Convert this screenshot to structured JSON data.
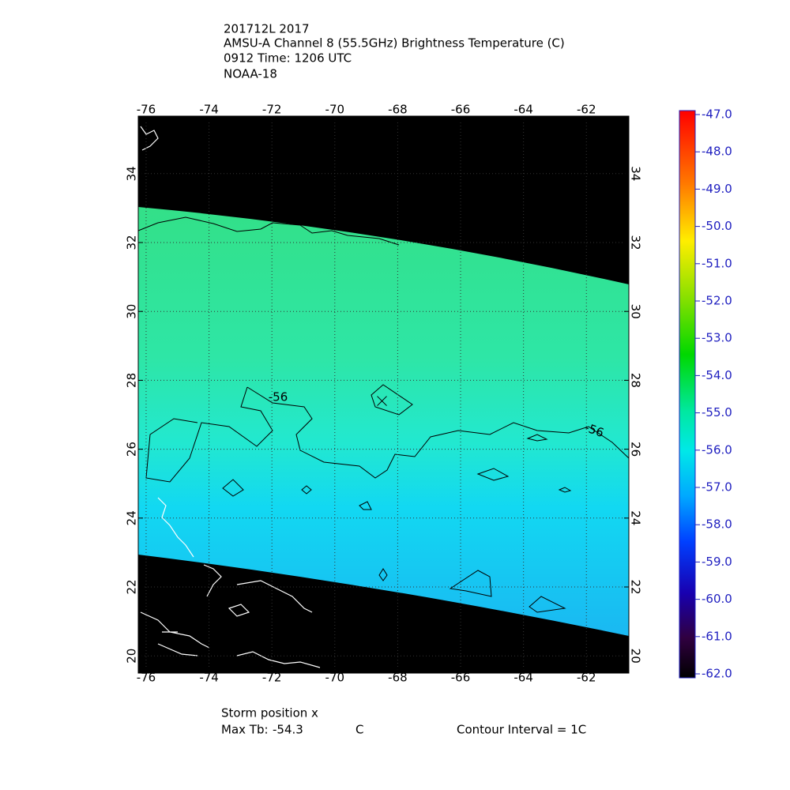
{
  "header": {
    "lines": [
      "201712L 2017",
      "AMSU-A Channel 8 (55.5GHz) Brightness Temperature (C)",
      "0912 Time: 1206 UTC",
      "NOAA-18"
    ]
  },
  "map": {
    "xlim": [
      -76.25,
      -60.65
    ],
    "ylim": [
      19.5,
      35.67
    ],
    "xticks": [
      -76,
      -74,
      -72,
      -70,
      -68,
      -66,
      -64,
      -62
    ],
    "yticks": [
      20,
      22,
      24,
      26,
      28,
      30,
      32,
      34
    ],
    "contour_labels": [
      "-56",
      "-56"
    ],
    "storm": {
      "lon": -68.5,
      "lat": 27.4
    }
  },
  "colorbar": {
    "lim": [
      -62,
      -47
    ],
    "ticks": [
      {
        "value": -47,
        "label": "-47.0"
      },
      {
        "value": -48,
        "label": "-48.0"
      },
      {
        "value": -49,
        "label": "-49.0"
      },
      {
        "value": -50,
        "label": "-50.0"
      },
      {
        "value": -51,
        "label": "-51.0"
      },
      {
        "value": -52,
        "label": "-52.0"
      },
      {
        "value": -53,
        "label": "-53.0"
      },
      {
        "value": -54,
        "label": "-54.0"
      },
      {
        "value": -55,
        "label": "-55.0"
      },
      {
        "value": -56,
        "label": "-56.0"
      },
      {
        "value": -57,
        "label": "-57.0"
      },
      {
        "value": -58,
        "label": "-58.0"
      },
      {
        "value": -59,
        "label": "-59.0"
      },
      {
        "value": -60,
        "label": "-60.0"
      },
      {
        "value": -61,
        "label": "-61.0"
      },
      {
        "value": -62,
        "label": "-62.0"
      }
    ]
  },
  "footer": {
    "storm_label": "Storm position x",
    "max_tb_label": "Max Tb:",
    "max_tb": -54.3,
    "max_tb_unit": "C",
    "contour_interval": "Contour Interval = 1C"
  }
}
